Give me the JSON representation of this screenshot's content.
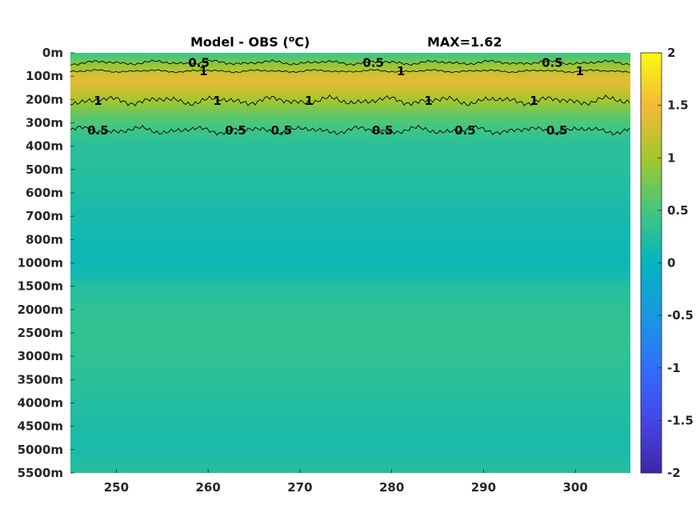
{
  "chart_data": {
    "type": "heatmap",
    "title": "Model - OBS (",
    "title_unit_sup": "o",
    "title_unit": "C)",
    "max_label": "MAX=1.62",
    "x_ticks": [
      250,
      260,
      270,
      280,
      290,
      300
    ],
    "x_tick_labels": [
      "250",
      "260",
      "270",
      "280",
      "290",
      "300"
    ],
    "xlim": [
      245,
      306
    ],
    "y_tick_labels": [
      "0m",
      "100m",
      "200m",
      "300m",
      "400m",
      "500m",
      "600m",
      "700m",
      "800m",
      "1000m",
      "1500m",
      "2000m",
      "2500m",
      "3000m",
      "3500m",
      "4000m",
      "4500m",
      "5000m",
      "5500m"
    ],
    "colorbar": {
      "ticks": [
        2,
        1.5,
        1,
        0.5,
        0,
        -0.5,
        -1,
        -1.5,
        -2
      ],
      "tick_labels": [
        "2",
        "1.5",
        "1",
        "0.5",
        "0",
        "-0.5",
        "-1",
        "-1.5",
        "-2"
      ],
      "range": [
        -2,
        2
      ],
      "colormap": "parula"
    },
    "depth_profile": {
      "depth_index": [
        0,
        0.25,
        0.6,
        1.0,
        1.3,
        1.6,
        2.0,
        2.4,
        2.8,
        3.3,
        3.7,
        4,
        5,
        6,
        7,
        8,
        8.7,
        9,
        9.6,
        10,
        11,
        12,
        13,
        14,
        15,
        16,
        17,
        18
      ],
      "value": [
        0.45,
        0.6,
        1.0,
        1.35,
        1.4,
        1.25,
        1.05,
        0.8,
        0.6,
        0.45,
        0.35,
        0.3,
        0.27,
        0.22,
        0.15,
        0.1,
        0.07,
        0.08,
        0.15,
        0.25,
        0.33,
        0.36,
        0.34,
        0.3,
        0.24,
        0.2,
        0.17,
        0.28
      ]
    },
    "contours": [
      {
        "level": "0.5",
        "labels_x": [
          259,
          278,
          297.5
        ]
      },
      {
        "level": "1",
        "labels_x": [
          259.5,
          281,
          300.5
        ]
      },
      {
        "level": "1",
        "labels_x": [
          248,
          261,
          271,
          284,
          295.5
        ]
      },
      {
        "level": "0.5",
        "labels_x": [
          248,
          263,
          268,
          279,
          288,
          298
        ]
      }
    ]
  }
}
